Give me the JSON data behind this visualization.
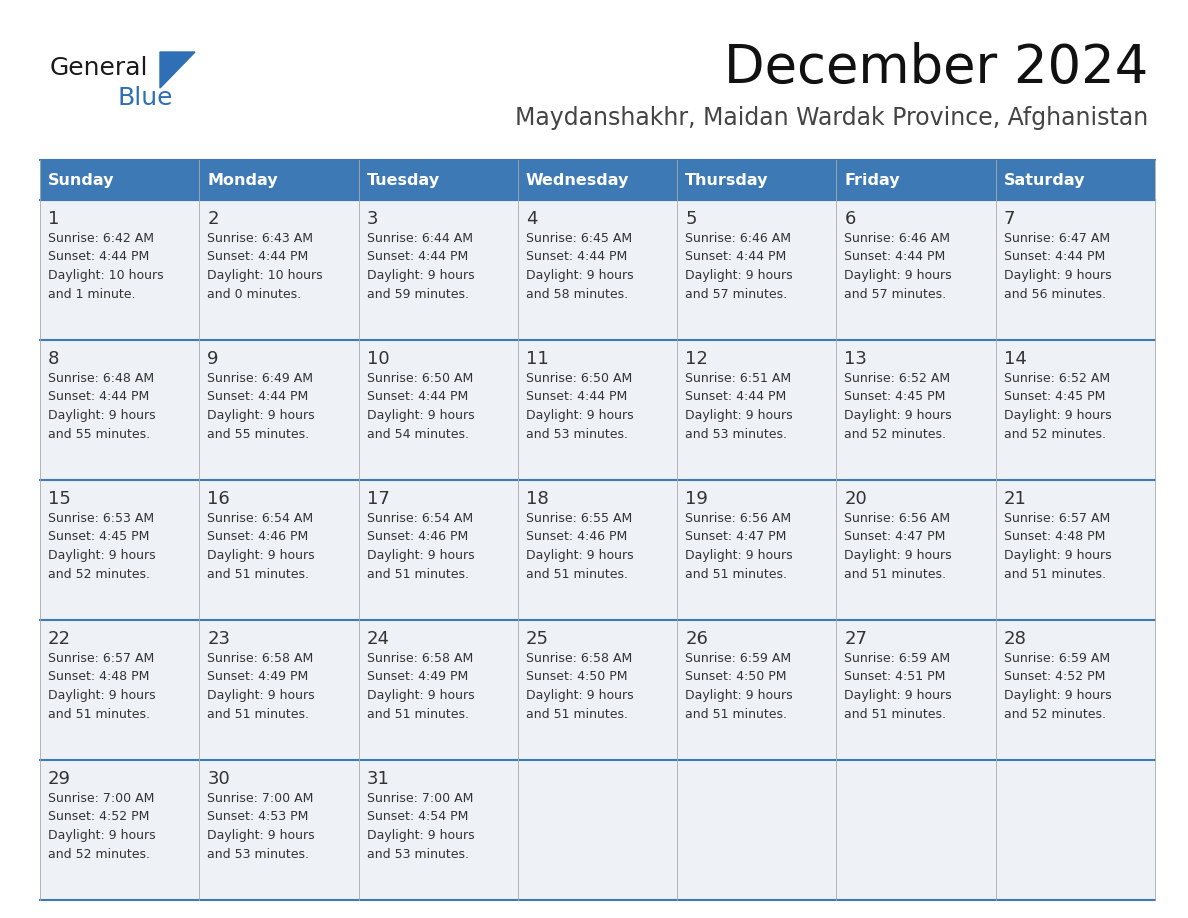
{
  "title": "December 2024",
  "subtitle": "Maydanshakhr, Maidan Wardak Province, Afghanistan",
  "header_bg_color": "#3D7AB5",
  "header_text_color": "#FFFFFF",
  "day_names": [
    "Sunday",
    "Monday",
    "Tuesday",
    "Wednesday",
    "Thursday",
    "Friday",
    "Saturday"
  ],
  "bg_color": "#FFFFFF",
  "cell_bg_color": "#EEF2F7",
  "cell_border_color": "#3D7AB5",
  "cell_border_color_light": "#3D7AB5",
  "day_num_color": "#333333",
  "day_text_color": "#333333",
  "logo_general_color": "#1A1A1A",
  "logo_blue_color": "#2E6FB5",
  "title_color": "#111111",
  "subtitle_color": "#444444",
  "calendar_data": [
    [
      {
        "day": 1,
        "sunrise": "6:42 AM",
        "sunset": "4:44 PM",
        "daylight_line1": "10 hours",
        "daylight_line2": "and 1 minute."
      },
      {
        "day": 2,
        "sunrise": "6:43 AM",
        "sunset": "4:44 PM",
        "daylight_line1": "10 hours",
        "daylight_line2": "and 0 minutes."
      },
      {
        "day": 3,
        "sunrise": "6:44 AM",
        "sunset": "4:44 PM",
        "daylight_line1": "9 hours",
        "daylight_line2": "and 59 minutes."
      },
      {
        "day": 4,
        "sunrise": "6:45 AM",
        "sunset": "4:44 PM",
        "daylight_line1": "9 hours",
        "daylight_line2": "and 58 minutes."
      },
      {
        "day": 5,
        "sunrise": "6:46 AM",
        "sunset": "4:44 PM",
        "daylight_line1": "9 hours",
        "daylight_line2": "and 57 minutes."
      },
      {
        "day": 6,
        "sunrise": "6:46 AM",
        "sunset": "4:44 PM",
        "daylight_line1": "9 hours",
        "daylight_line2": "and 57 minutes."
      },
      {
        "day": 7,
        "sunrise": "6:47 AM",
        "sunset": "4:44 PM",
        "daylight_line1": "9 hours",
        "daylight_line2": "and 56 minutes."
      }
    ],
    [
      {
        "day": 8,
        "sunrise": "6:48 AM",
        "sunset": "4:44 PM",
        "daylight_line1": "9 hours",
        "daylight_line2": "and 55 minutes."
      },
      {
        "day": 9,
        "sunrise": "6:49 AM",
        "sunset": "4:44 PM",
        "daylight_line1": "9 hours",
        "daylight_line2": "and 55 minutes."
      },
      {
        "day": 10,
        "sunrise": "6:50 AM",
        "sunset": "4:44 PM",
        "daylight_line1": "9 hours",
        "daylight_line2": "and 54 minutes."
      },
      {
        "day": 11,
        "sunrise": "6:50 AM",
        "sunset": "4:44 PM",
        "daylight_line1": "9 hours",
        "daylight_line2": "and 53 minutes."
      },
      {
        "day": 12,
        "sunrise": "6:51 AM",
        "sunset": "4:44 PM",
        "daylight_line1": "9 hours",
        "daylight_line2": "and 53 minutes."
      },
      {
        "day": 13,
        "sunrise": "6:52 AM",
        "sunset": "4:45 PM",
        "daylight_line1": "9 hours",
        "daylight_line2": "and 52 minutes."
      },
      {
        "day": 14,
        "sunrise": "6:52 AM",
        "sunset": "4:45 PM",
        "daylight_line1": "9 hours",
        "daylight_line2": "and 52 minutes."
      }
    ],
    [
      {
        "day": 15,
        "sunrise": "6:53 AM",
        "sunset": "4:45 PM",
        "daylight_line1": "9 hours",
        "daylight_line2": "and 52 minutes."
      },
      {
        "day": 16,
        "sunrise": "6:54 AM",
        "sunset": "4:46 PM",
        "daylight_line1": "9 hours",
        "daylight_line2": "and 51 minutes."
      },
      {
        "day": 17,
        "sunrise": "6:54 AM",
        "sunset": "4:46 PM",
        "daylight_line1": "9 hours",
        "daylight_line2": "and 51 minutes."
      },
      {
        "day": 18,
        "sunrise": "6:55 AM",
        "sunset": "4:46 PM",
        "daylight_line1": "9 hours",
        "daylight_line2": "and 51 minutes."
      },
      {
        "day": 19,
        "sunrise": "6:56 AM",
        "sunset": "4:47 PM",
        "daylight_line1": "9 hours",
        "daylight_line2": "and 51 minutes."
      },
      {
        "day": 20,
        "sunrise": "6:56 AM",
        "sunset": "4:47 PM",
        "daylight_line1": "9 hours",
        "daylight_line2": "and 51 minutes."
      },
      {
        "day": 21,
        "sunrise": "6:57 AM",
        "sunset": "4:48 PM",
        "daylight_line1": "9 hours",
        "daylight_line2": "and 51 minutes."
      }
    ],
    [
      {
        "day": 22,
        "sunrise": "6:57 AM",
        "sunset": "4:48 PM",
        "daylight_line1": "9 hours",
        "daylight_line2": "and 51 minutes."
      },
      {
        "day": 23,
        "sunrise": "6:58 AM",
        "sunset": "4:49 PM",
        "daylight_line1": "9 hours",
        "daylight_line2": "and 51 minutes."
      },
      {
        "day": 24,
        "sunrise": "6:58 AM",
        "sunset": "4:49 PM",
        "daylight_line1": "9 hours",
        "daylight_line2": "and 51 minutes."
      },
      {
        "day": 25,
        "sunrise": "6:58 AM",
        "sunset": "4:50 PM",
        "daylight_line1": "9 hours",
        "daylight_line2": "and 51 minutes."
      },
      {
        "day": 26,
        "sunrise": "6:59 AM",
        "sunset": "4:50 PM",
        "daylight_line1": "9 hours",
        "daylight_line2": "and 51 minutes."
      },
      {
        "day": 27,
        "sunrise": "6:59 AM",
        "sunset": "4:51 PM",
        "daylight_line1": "9 hours",
        "daylight_line2": "and 51 minutes."
      },
      {
        "day": 28,
        "sunrise": "6:59 AM",
        "sunset": "4:52 PM",
        "daylight_line1": "9 hours",
        "daylight_line2": "and 52 minutes."
      }
    ],
    [
      {
        "day": 29,
        "sunrise": "7:00 AM",
        "sunset": "4:52 PM",
        "daylight_line1": "9 hours",
        "daylight_line2": "and 52 minutes."
      },
      {
        "day": 30,
        "sunrise": "7:00 AM",
        "sunset": "4:53 PM",
        "daylight_line1": "9 hours",
        "daylight_line2": "and 53 minutes."
      },
      {
        "day": 31,
        "sunrise": "7:00 AM",
        "sunset": "4:54 PM",
        "daylight_line1": "9 hours",
        "daylight_line2": "and 53 minutes."
      },
      null,
      null,
      null,
      null
    ]
  ]
}
